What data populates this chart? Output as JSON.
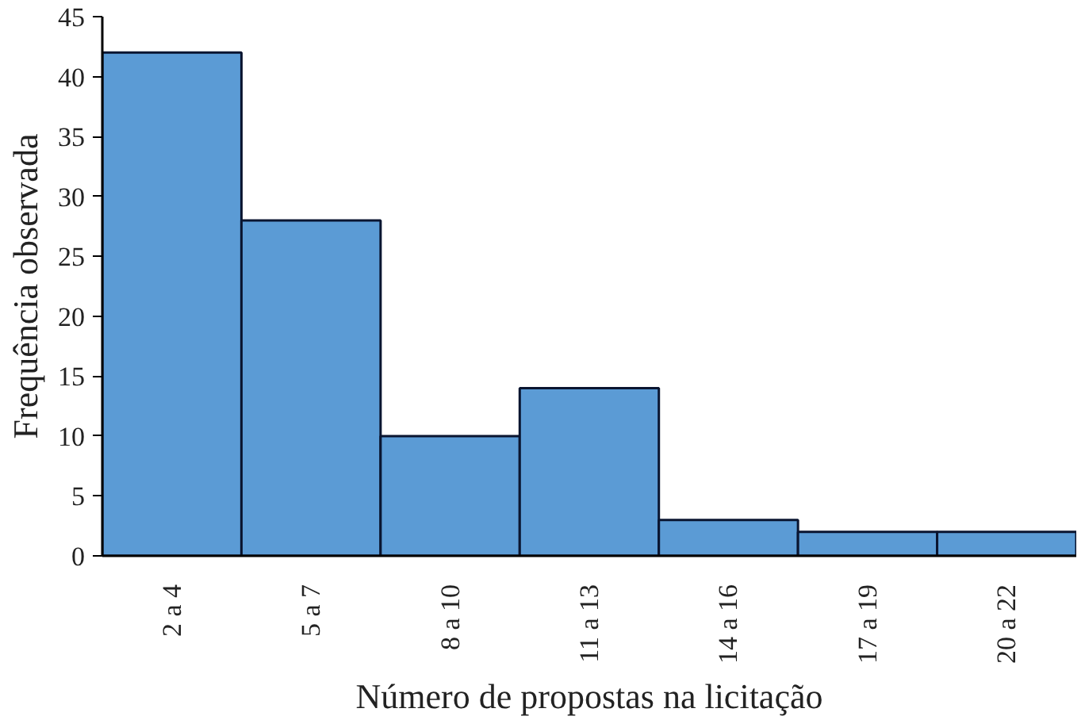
{
  "chart_data": {
    "type": "bar",
    "xlabel": "Número de propostas na licitação",
    "ylabel": "Frequência observada",
    "categories": [
      "2 a 4",
      "5 a 7",
      "8 a 10",
      "11 a 13",
      "14 a 16",
      "17 a 19",
      "20 a 22"
    ],
    "values": [
      42,
      28,
      10,
      14,
      3,
      2,
      2
    ],
    "color": "#5b9bd5",
    "ylim": [
      0,
      45
    ],
    "yticks": [
      0,
      5,
      10,
      15,
      20,
      25,
      30,
      35,
      40,
      45
    ],
    "grid": false
  }
}
